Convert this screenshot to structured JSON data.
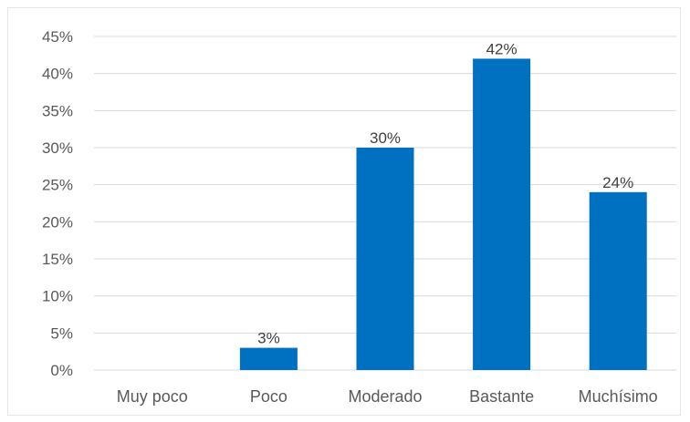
{
  "chart_data": {
    "type": "bar",
    "categories": [
      "Muy poco",
      "Poco",
      "Moderado",
      "Bastante",
      "Muchísimo"
    ],
    "values": [
      0,
      3,
      30,
      42,
      24
    ],
    "data_labels": [
      "",
      "3%",
      "30%",
      "42%",
      "24%"
    ],
    "title": "",
    "xlabel": "",
    "ylabel": "",
    "ylim": [
      0,
      45
    ],
    "yticks": [
      0,
      5,
      10,
      15,
      20,
      25,
      30,
      35,
      40,
      45
    ],
    "ytick_labels": [
      "0%",
      "5%",
      "10%",
      "15%",
      "20%",
      "25%",
      "30%",
      "35%",
      "40%",
      "45%"
    ],
    "grid": true,
    "legend": "none",
    "colors": {
      "bar": "#0070c0",
      "grid": "#d9d9d9",
      "text": "#595959"
    }
  }
}
